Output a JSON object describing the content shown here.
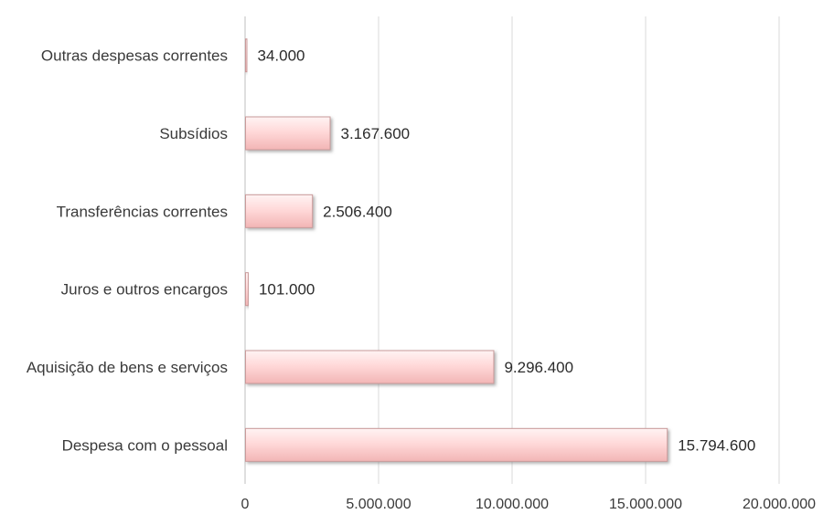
{
  "chart_data": {
    "type": "bar",
    "orientation": "horizontal",
    "categories": [
      "Despesa com o pessoal",
      "Aquisição de bens e serviços",
      "Juros e outros encargos",
      "Transferências correntes",
      "Subsídios",
      "Outras despesas correntes"
    ],
    "values": [
      15794600,
      9296400,
      101000,
      2506400,
      3167600,
      34000
    ],
    "data_labels": [
      "15.794.600",
      "9.296.400",
      "101.000",
      "2.506.400",
      "3.167.600",
      "34.000"
    ],
    "xlim": [
      0,
      20000000
    ],
    "x_ticks": [
      0,
      5000000,
      10000000,
      15000000,
      20000000
    ],
    "x_tick_labels": [
      "0",
      "5.000.000",
      "10.000.000",
      "15.000.000",
      "20.000.000"
    ],
    "grid": "vertical",
    "legend": "none",
    "title": "",
    "xlabel": "",
    "ylabel": "",
    "colors": {
      "bar_fill_light": "#fff3f3",
      "bar_fill_mid": "#ffd9d9",
      "bar_fill_dark": "#f2b5b5",
      "bar_edge": "#c99a9a",
      "bar_shadow": "#9a9a9a",
      "grid": "#d9d9d9",
      "axis": "#bfbfbf",
      "text": "#3a3a3a"
    }
  }
}
